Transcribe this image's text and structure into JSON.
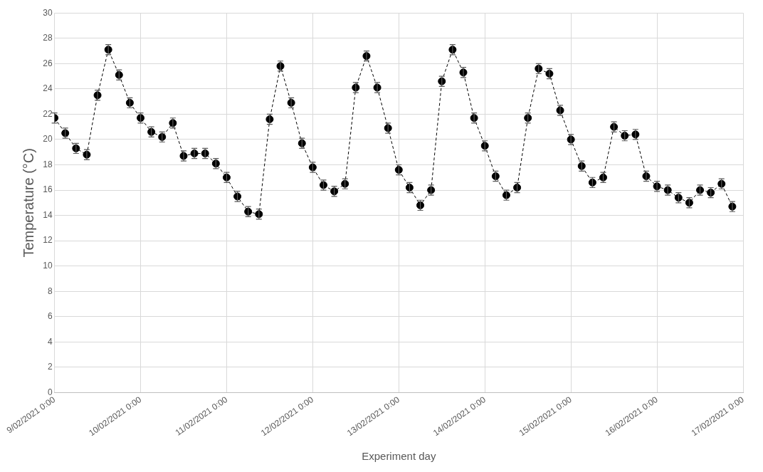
{
  "chart_data": {
    "type": "line",
    "xlabel": "Experiment day",
    "ylabel": "Temperature (°C)",
    "x": [
      "2021-02-09T00:00",
      "2021-02-09T03:00",
      "2021-02-09T06:00",
      "2021-02-09T09:00",
      "2021-02-09T12:00",
      "2021-02-09T15:00",
      "2021-02-09T18:00",
      "2021-02-09T21:00",
      "2021-02-10T00:00",
      "2021-02-10T03:00",
      "2021-02-10T06:00",
      "2021-02-10T09:00",
      "2021-02-10T12:00",
      "2021-02-10T15:00",
      "2021-02-10T18:00",
      "2021-02-10T21:00",
      "2021-02-11T00:00",
      "2021-02-11T03:00",
      "2021-02-11T06:00",
      "2021-02-11T09:00",
      "2021-02-11T12:00",
      "2021-02-11T15:00",
      "2021-02-11T18:00",
      "2021-02-11T21:00",
      "2021-02-12T00:00",
      "2021-02-12T03:00",
      "2021-02-12T06:00",
      "2021-02-12T09:00",
      "2021-02-12T12:00",
      "2021-02-12T15:00",
      "2021-02-12T18:00",
      "2021-02-12T21:00",
      "2021-02-13T00:00",
      "2021-02-13T03:00",
      "2021-02-13T06:00",
      "2021-02-13T09:00",
      "2021-02-13T12:00",
      "2021-02-13T15:00",
      "2021-02-13T18:00",
      "2021-02-13T21:00",
      "2021-02-14T00:00",
      "2021-02-14T03:00",
      "2021-02-14T06:00",
      "2021-02-14T09:00",
      "2021-02-14T12:00",
      "2021-02-14T15:00",
      "2021-02-14T18:00",
      "2021-02-14T21:00",
      "2021-02-15T00:00",
      "2021-02-15T03:00",
      "2021-02-15T06:00",
      "2021-02-15T09:00",
      "2021-02-15T12:00",
      "2021-02-15T15:00",
      "2021-02-15T18:00",
      "2021-02-15T21:00",
      "2021-02-16T00:00",
      "2021-02-16T03:00",
      "2021-02-16T06:00",
      "2021-02-16T09:00",
      "2021-02-16T12:00",
      "2021-02-16T15:00",
      "2021-02-16T18:00",
      "2021-02-16T21:00"
    ],
    "series": [
      {
        "color": "#000000",
        "values": [
          21.7,
          20.5,
          19.3,
          18.8,
          23.5,
          27.1,
          25.1,
          22.9,
          21.7,
          20.6,
          20.2,
          21.3,
          18.7,
          18.9,
          18.9,
          18.1,
          17.0,
          15.5,
          14.3,
          14.1,
          21.6,
          25.8,
          22.9,
          19.7,
          17.8,
          16.4,
          15.9,
          16.5,
          24.1,
          26.6,
          24.1,
          20.9,
          17.6,
          16.2,
          14.8,
          16.0,
          24.6,
          27.1,
          25.3,
          21.7,
          19.5,
          17.1,
          15.6,
          16.2,
          21.7,
          25.6,
          25.2,
          22.3,
          20.0,
          17.9,
          16.6,
          17.0,
          21.0,
          20.3,
          20.4,
          17.1,
          16.3,
          16.0,
          15.4,
          15.0,
          16.0,
          15.8,
          16.5,
          14.7
        ],
        "errors": [
          0.4,
          0.4,
          0.4,
          0.4,
          0.4,
          0.4,
          0.4,
          0.4,
          0.4,
          0.4,
          0.4,
          0.4,
          0.4,
          0.4,
          0.4,
          0.4,
          0.4,
          0.4,
          0.4,
          0.4,
          0.4,
          0.4,
          0.4,
          0.4,
          0.4,
          0.4,
          0.4,
          0.4,
          0.4,
          0.4,
          0.4,
          0.4,
          0.4,
          0.4,
          0.4,
          0.4,
          0.4,
          0.4,
          0.4,
          0.4,
          0.4,
          0.4,
          0.4,
          0.4,
          0.4,
          0.4,
          0.4,
          0.4,
          0.4,
          0.4,
          0.4,
          0.4,
          0.4,
          0.4,
          0.4,
          0.4,
          0.4,
          0.4,
          0.4,
          0.4,
          0.4,
          0.4,
          0.4,
          0.4
        ]
      }
    ],
    "xlim": [
      "2021-02-09T00:00",
      "2021-02-17T00:00"
    ],
    "xticks": [
      {
        "value": "2021-02-09T00:00",
        "label": "9/02/2021 0:00"
      },
      {
        "value": "2021-02-10T00:00",
        "label": "10/02/2021 0:00"
      },
      {
        "value": "2021-02-11T00:00",
        "label": "11/02/2021 0:00"
      },
      {
        "value": "2021-02-12T00:00",
        "label": "12/02/2021 0:00"
      },
      {
        "value": "2021-02-13T00:00",
        "label": "13/02/2021 0:00"
      },
      {
        "value": "2021-02-14T00:00",
        "label": "14/02/2021 0:00"
      },
      {
        "value": "2021-02-15T00:00",
        "label": "15/02/2021 0:00"
      },
      {
        "value": "2021-02-16T00:00",
        "label": "16/02/2021 0:00"
      },
      {
        "value": "2021-02-17T00:00",
        "label": "17/02/2021 0:00"
      }
    ],
    "ylim": [
      0,
      30
    ],
    "yticks": [
      0,
      2,
      4,
      6,
      8,
      10,
      12,
      14,
      16,
      18,
      20,
      22,
      24,
      26,
      28,
      30
    ],
    "grid": true,
    "legend": false,
    "marker": "circle",
    "line_style": "dashed"
  }
}
